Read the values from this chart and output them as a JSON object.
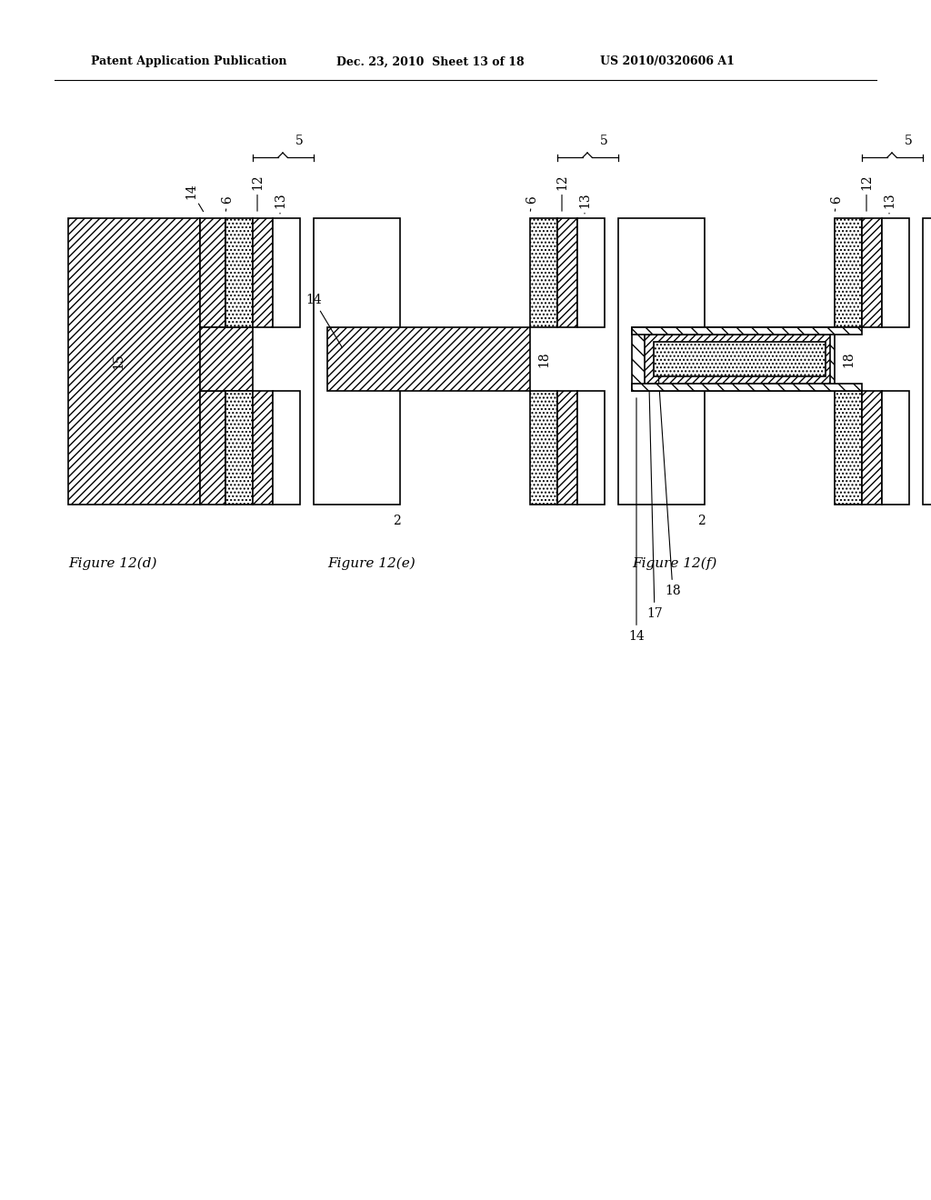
{
  "header_left": "Patent Application Publication",
  "header_mid": "Dec. 23, 2010  Sheet 13 of 18",
  "header_right": "US 2010/0320606 A1",
  "fig_labels": [
    "Figure 12(d)",
    "Figure 12(e)",
    "Figure 12(f)"
  ],
  "bg_color": "#ffffff"
}
